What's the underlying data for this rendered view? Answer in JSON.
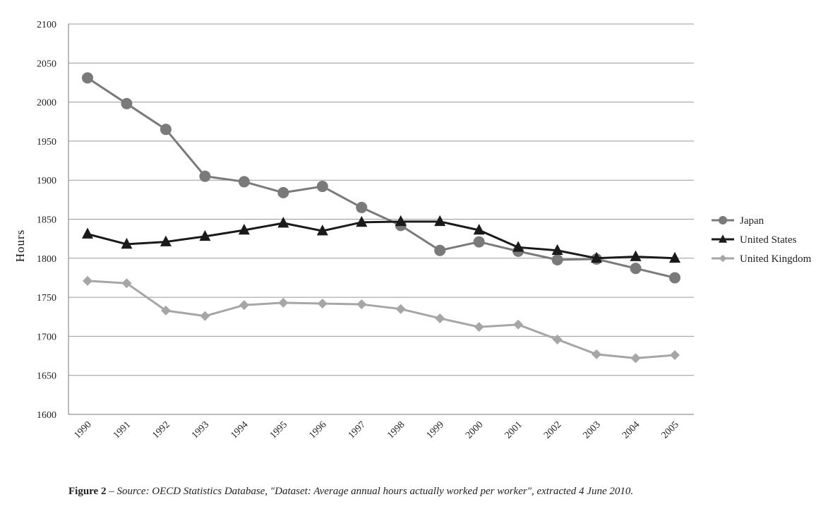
{
  "chart_data": {
    "type": "line",
    "ylabel": "Hours",
    "ylim": [
      1600,
      2100
    ],
    "y_ticks": [
      1600,
      1650,
      1700,
      1750,
      1800,
      1850,
      1900,
      1950,
      2000,
      2050,
      2100
    ],
    "categories": [
      "1990",
      "1991",
      "1992",
      "1993",
      "1994",
      "1995",
      "1996",
      "1997",
      "1998",
      "1999",
      "2000",
      "2001",
      "2002",
      "2003",
      "2004",
      "2005"
    ],
    "legend_position": "right",
    "grid": true,
    "series": [
      {
        "name": "Japan",
        "marker": "circle",
        "color": "#7a7a7a",
        "values": [
          2031,
          1998,
          1965,
          1905,
          1898,
          1884,
          1892,
          1865,
          1842,
          1810,
          1821,
          1809,
          1798,
          1799,
          1787,
          1775
        ]
      },
      {
        "name": "United States",
        "marker": "triangle",
        "color": "#1a1a1a",
        "values": [
          1831,
          1818,
          1821,
          1828,
          1836,
          1845,
          1835,
          1846,
          1847,
          1847,
          1836,
          1814,
          1810,
          1800,
          1802,
          1800
        ]
      },
      {
        "name": "United Kingdom",
        "marker": "diamond",
        "color": "#a6a6a6",
        "values": [
          1771,
          1768,
          1733,
          1726,
          1740,
          1743,
          1742,
          1741,
          1735,
          1723,
          1712,
          1715,
          1696,
          1677,
          1672,
          1676
        ]
      }
    ]
  },
  "caption": {
    "figure_label": "Figure 2",
    "dash": " – ",
    "text": "Source: OECD Statistics Database, \"Dataset: Average annual hours actually worked per worker\", extracted 4 June   2010."
  }
}
